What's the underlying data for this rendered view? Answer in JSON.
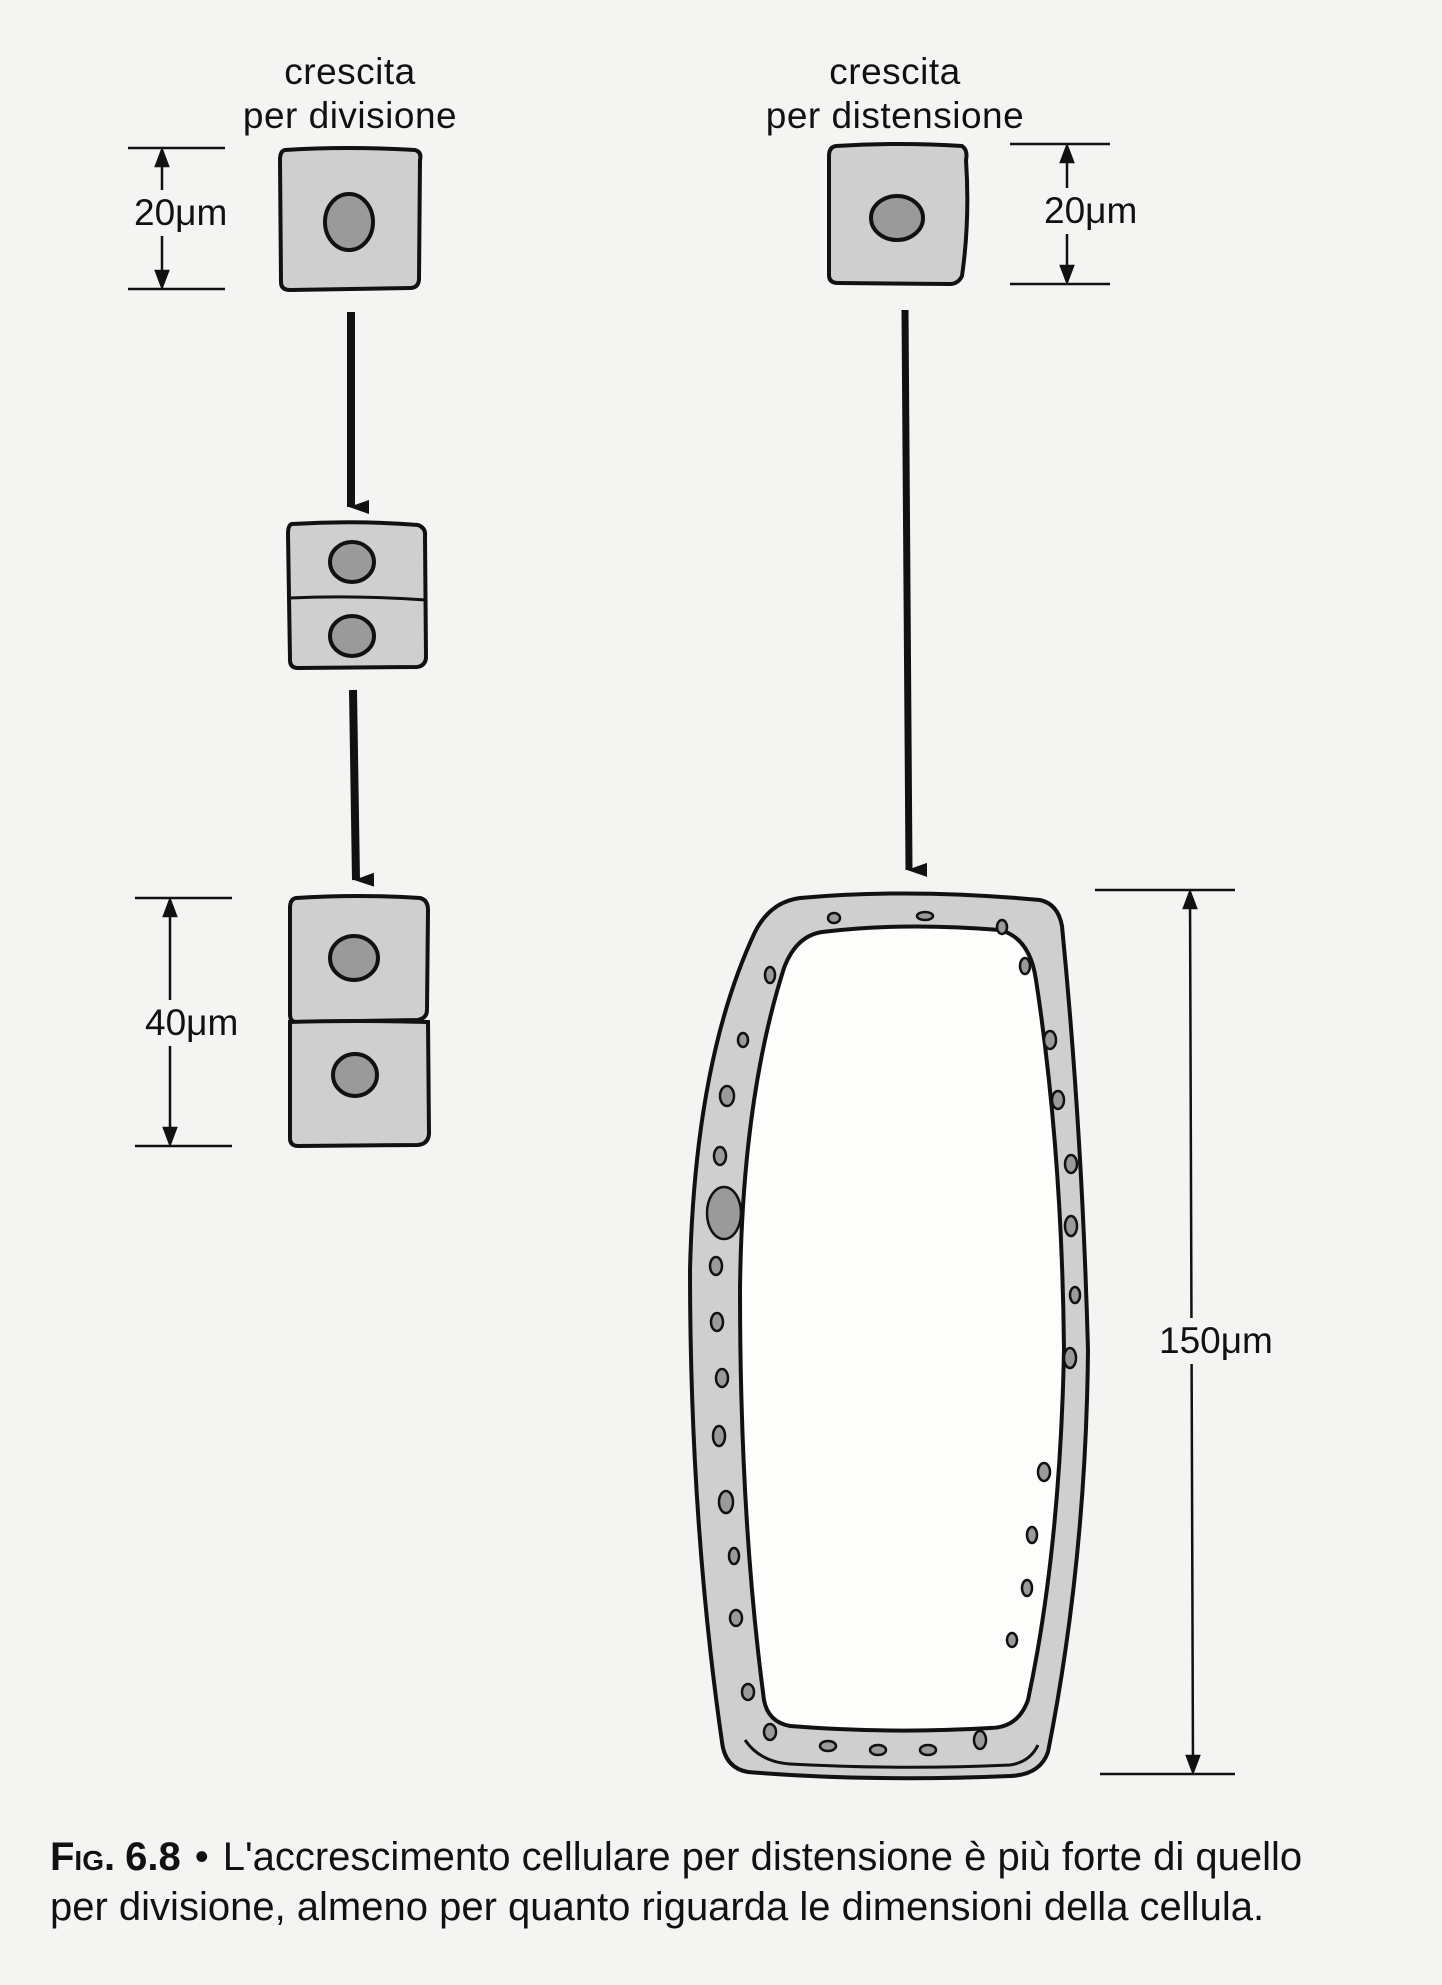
{
  "headers": {
    "division": {
      "line1": "crescita",
      "line2": "per divisione"
    },
    "distension": {
      "line1": "crescita",
      "line2": "per distensione"
    }
  },
  "measurements": {
    "division_start": "20μm",
    "division_end": "40μm",
    "distension_start": "20μm",
    "distension_end": "150μm"
  },
  "caption": {
    "label": "Fig.",
    "number": "6.8",
    "bullet": "•",
    "text_line1": "L'accrescimento cellulare per distensione è più forte di quello",
    "text_line2": "per divisione, almeno per quanto riguarda le dimensioni della cellula."
  },
  "colors": {
    "cell_fill": "#cfcfcf",
    "nucleus_fill": "#9a9a9a",
    "ink": "#111111",
    "background": "#f4f4f2"
  }
}
